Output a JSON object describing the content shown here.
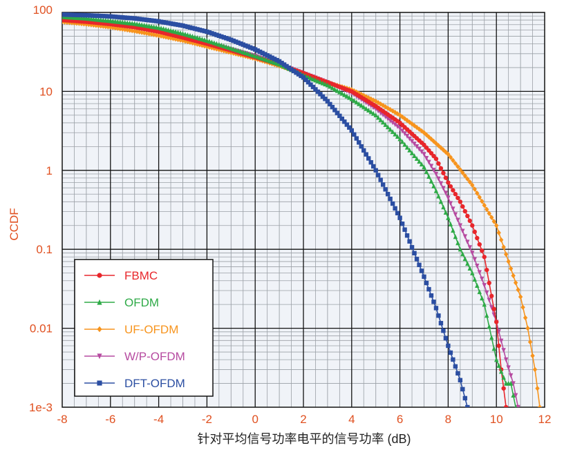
{
  "chart_data": {
    "type": "line",
    "title": "",
    "xlabel": "针对平均信号功率电平的信号功率 (dB)",
    "ylabel": "CCDF",
    "xlim": [
      -8,
      12
    ],
    "ylim": [
      0.001,
      100
    ],
    "yscale": "log",
    "grid": true,
    "legend_position": "bottom-left",
    "x_ticks": [
      "-8",
      "-6",
      "-4",
      "-2",
      "0",
      "2",
      "4",
      "6",
      "8",
      "10",
      "12"
    ],
    "y_ticks": [
      "100",
      "10",
      "1",
      "0.1",
      "0.01",
      "1e-3"
    ],
    "colors": {
      "axis_text": "#e05020",
      "grid_major": "#111111",
      "grid_minor": "#9aa0a6",
      "plot_bg": "#f0f3f8"
    },
    "series": [
      {
        "name": "FBMC",
        "color": "#e8262b",
        "marker": "circle",
        "points": [
          [
            -8,
            80
          ],
          [
            -7,
            76
          ],
          [
            -6,
            71
          ],
          [
            -5,
            65
          ],
          [
            -4,
            57
          ],
          [
            -3,
            48
          ],
          [
            -2,
            40
          ],
          [
            -1,
            33
          ],
          [
            0,
            27
          ],
          [
            1,
            22
          ],
          [
            2,
            17
          ],
          [
            3,
            13
          ],
          [
            4,
            10
          ],
          [
            5,
            6.5
          ],
          [
            6,
            4
          ],
          [
            7,
            2.1
          ],
          [
            7.5,
            1.4
          ],
          [
            8,
            0.7
          ],
          [
            8.5,
            0.4
          ],
          [
            9,
            0.2
          ],
          [
            9.5,
            0.08
          ],
          [
            10,
            0.012
          ],
          [
            10.2,
            0.003
          ],
          [
            10.4,
            0.001
          ]
        ]
      },
      {
        "name": "OFDM",
        "color": "#2eaa47",
        "marker": "triangle-up",
        "points": [
          [
            -8,
            88
          ],
          [
            -7,
            84
          ],
          [
            -6,
            78
          ],
          [
            -5,
            72
          ],
          [
            -4,
            64
          ],
          [
            -3,
            54
          ],
          [
            -2,
            44
          ],
          [
            -1,
            35
          ],
          [
            0,
            28
          ],
          [
            1,
            22
          ],
          [
            2,
            16
          ],
          [
            3,
            12
          ],
          [
            4,
            8
          ],
          [
            5,
            5
          ],
          [
            6,
            2.5
          ],
          [
            7,
            1.1
          ],
          [
            7.5,
            0.55
          ],
          [
            8,
            0.25
          ],
          [
            8.5,
            0.1
          ],
          [
            9,
            0.05
          ],
          [
            9.5,
            0.02
          ],
          [
            10,
            0.004
          ],
          [
            10.4,
            0.002
          ],
          [
            10.6,
            0.002
          ],
          [
            10.8,
            0.001
          ]
        ]
      },
      {
        "name": "UF-OFDM",
        "color": "#f7941d",
        "marker": "diamond",
        "points": [
          [
            -8,
            76
          ],
          [
            -7,
            71
          ],
          [
            -6,
            65
          ],
          [
            -5,
            58
          ],
          [
            -4,
            51
          ],
          [
            -3,
            44
          ],
          [
            -2,
            37
          ],
          [
            -1,
            31
          ],
          [
            0,
            26
          ],
          [
            1,
            21
          ],
          [
            2,
            17
          ],
          [
            3,
            13
          ],
          [
            4,
            10.5
          ],
          [
            5,
            7.5
          ],
          [
            6,
            5
          ],
          [
            7,
            3
          ],
          [
            8,
            1.6
          ],
          [
            9,
            0.65
          ],
          [
            10,
            0.2
          ],
          [
            10.5,
            0.07
          ],
          [
            11,
            0.025
          ],
          [
            11.3,
            0.01
          ],
          [
            11.6,
            0.003
          ],
          [
            11.8,
            0.001
          ]
        ]
      },
      {
        "name": "W/P-OFDM",
        "color": "#b64aa0",
        "marker": "triangle-down",
        "points": [
          [
            -8,
            82
          ],
          [
            -7,
            78
          ],
          [
            -6,
            73
          ],
          [
            -5,
            67
          ],
          [
            -4,
            59
          ],
          [
            -3,
            50
          ],
          [
            -2,
            41
          ],
          [
            -1,
            34
          ],
          [
            0,
            28
          ],
          [
            1,
            22
          ],
          [
            2,
            17
          ],
          [
            3,
            13
          ],
          [
            4,
            9.5
          ],
          [
            5,
            6
          ],
          [
            6,
            3.4
          ],
          [
            7,
            1.6
          ],
          [
            7.5,
            0.9
          ],
          [
            8,
            0.45
          ],
          [
            8.5,
            0.2
          ],
          [
            9,
            0.09
          ],
          [
            9.5,
            0.035
          ],
          [
            10,
            0.012
          ],
          [
            10.4,
            0.004
          ],
          [
            10.7,
            0.002
          ],
          [
            10.9,
            0.001
          ]
        ]
      },
      {
        "name": "DFT-OFDM",
        "color": "#2b4ea2",
        "marker": "square",
        "points": [
          [
            -8,
            94
          ],
          [
            -7,
            92
          ],
          [
            -6,
            89
          ],
          [
            -5,
            84
          ],
          [
            -4,
            77
          ],
          [
            -3,
            68
          ],
          [
            -2,
            57
          ],
          [
            -1,
            45
          ],
          [
            0,
            34
          ],
          [
            1,
            24
          ],
          [
            2,
            15
          ],
          [
            3,
            7.5
          ],
          [
            4,
            3.2
          ],
          [
            5,
            1
          ],
          [
            6,
            0.25
          ],
          [
            7,
            0.045
          ],
          [
            7.5,
            0.018
          ],
          [
            8,
            0.006
          ],
          [
            8.5,
            0.0022
          ],
          [
            8.8,
            0.001
          ]
        ]
      }
    ]
  }
}
